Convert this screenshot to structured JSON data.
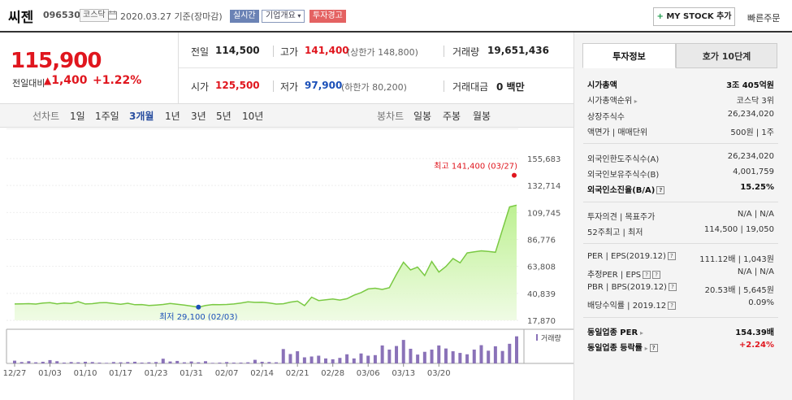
{
  "header": {
    "name": "씨젠",
    "code": "096530",
    "market_tag": "코스닥",
    "date_text": "2020.03.27  기준(장마감)",
    "realtime_label": "실시간",
    "company_label": "기업개요",
    "warning_label": "투자경고",
    "mystock_label": "MY STOCK 추가",
    "quick_order_label": "빠른주문"
  },
  "price": {
    "current": "115,900",
    "diff_label": "전일대비",
    "diff_value": "1,400",
    "diff_pct": "+1.22%"
  },
  "summary": {
    "prev_label": "전일",
    "prev_value": "114,500",
    "high_label": "고가",
    "high_value": "141,400",
    "upper_limit": "(상한가 148,800)",
    "volume_label": "거래량",
    "volume_value": "19,651,436",
    "open_label": "시가",
    "open_value": "125,500",
    "low_label": "저가",
    "low_value": "97,900",
    "lower_limit": "(하한가 80,200)",
    "amount_label": "거래대금",
    "amount_value": "0 백만"
  },
  "period_bar": {
    "line_label": "선차트",
    "periods": [
      "1일",
      "1주일",
      "3개월",
      "1년",
      "3년",
      "5년",
      "10년"
    ],
    "active": "3개월",
    "candle_label": "봉차트",
    "candles": [
      "일봉",
      "주봉",
      "월봉"
    ]
  },
  "right_panel": {
    "tabs": [
      "투자정보",
      "호가 10단계"
    ],
    "rows": [
      {
        "label": "시가총액",
        "value": "3조 405억원"
      },
      {
        "label": "시가총액순위",
        "value": "코스닥 3위"
      },
      {
        "label": "상장주식수",
        "value": "26,234,020"
      },
      {
        "label": "액면가 | 매매단위",
        "value": "500원 | 1주"
      },
      {
        "label": "외국인한도주식수(A)",
        "value": "26,234,020"
      },
      {
        "label": "외국인보유주식수(B)",
        "value": "4,001,759"
      },
      {
        "label": "외국인소진율(B/A)",
        "value": "15.25%"
      },
      {
        "label": "투자의견 | 목표주가",
        "value": "N/A | N/A"
      },
      {
        "label": "52주최고 | 최저",
        "value": "114,500 | 19,050"
      },
      {
        "label": "PER | EPS(2019.12)",
        "value": "111.12배 | 1,043원"
      },
      {
        "label": "추정PER | EPS",
        "value": "N/A | N/A"
      },
      {
        "label": "PBR | BPS(2019.12)",
        "value": "20.53배 | 5,645원"
      },
      {
        "label": "배당수익률 | 2019.12",
        "value": "0.09%"
      },
      {
        "label": "동일업종 PER",
        "value": "154.39배"
      },
      {
        "label": "동일업종 등락률",
        "value": "+2.24%"
      }
    ]
  },
  "chart_data": {
    "type": "line",
    "yticks": [
      "155,683",
      "132,714",
      "109,745",
      "86,776",
      "63,808",
      "40,839",
      "17,870"
    ],
    "ylim": [
      17870,
      155683
    ],
    "xticks": [
      "12/27",
      "01/03",
      "01/10",
      "01/17",
      "01/23",
      "01/31",
      "02/07",
      "02/14",
      "02/21",
      "02/28",
      "03/06",
      "03/13",
      "03/20"
    ],
    "max_annotation": "최고 141,400 (03/27)",
    "min_annotation": "최저 29,100 (02/03)",
    "volume_label": "거래량",
    "series": [
      {
        "values": [
          31800,
          31900,
          32100,
          31700,
          32600,
          33000,
          31900,
          32600,
          32300,
          33800,
          31800,
          32100,
          32800,
          33000,
          32200,
          31600,
          32400,
          31200,
          31300,
          30500,
          30900,
          31400,
          32300,
          31600,
          30800,
          30000,
          29100,
          30500,
          31300,
          31200,
          31400,
          31800,
          32600,
          33600,
          33200,
          33300,
          32700,
          31700,
          32000,
          33400,
          34200,
          30400,
          37600,
          34700,
          35300,
          36000,
          35100,
          36300,
          39300,
          41500,
          44600,
          45200,
          44200,
          45700,
          57000,
          67400,
          60800,
          63200,
          56000,
          68000,
          59000,
          63800,
          70500,
          66800,
          75300,
          76200,
          77100,
          76600,
          75800,
          95200,
          114500,
          115900
        ]
      }
    ],
    "volume": [
      0.1,
      0.05,
      0.08,
      0.04,
      0.06,
      0.12,
      0.08,
      0.03,
      0.05,
      0.04,
      0.06,
      0.05,
      0.03,
      0.02,
      0.05,
      0.04,
      0.05,
      0.06,
      0.03,
      0.04,
      0.05,
      0.17,
      0.07,
      0.09,
      0.04,
      0.07,
      0.04,
      0.08,
      0.02,
      0.03,
      0.05,
      0.03,
      0.03,
      0.04,
      0.13,
      0.06,
      0.05,
      0.04,
      0.52,
      0.34,
      0.44,
      0.22,
      0.25,
      0.28,
      0.18,
      0.15,
      0.2,
      0.33,
      0.18,
      0.36,
      0.28,
      0.3,
      0.65,
      0.5,
      0.63,
      0.85,
      0.53,
      0.32,
      0.42,
      0.5,
      0.65,
      0.54,
      0.44,
      0.38,
      0.33,
      0.5,
      0.66,
      0.46,
      0.62,
      0.45,
      0.71,
      0.98
    ]
  }
}
